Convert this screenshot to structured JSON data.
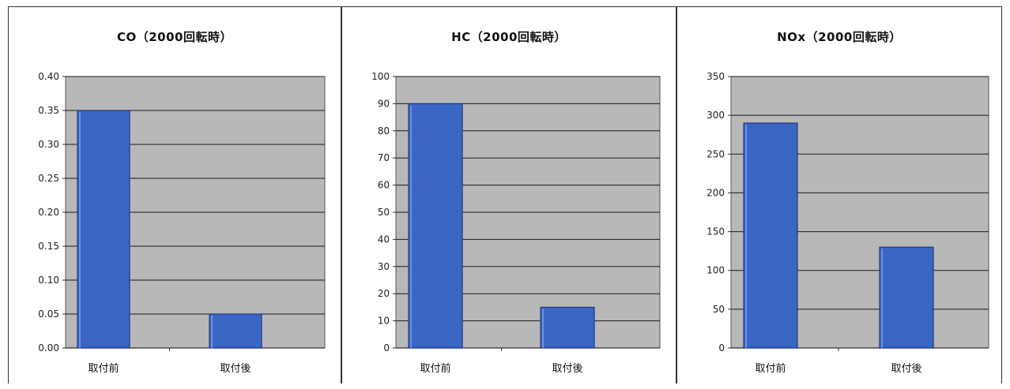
{
  "chart_data": [
    {
      "type": "bar",
      "title": "CO（2000回転時）",
      "categories": [
        "取付前",
        "取付後"
      ],
      "values": [
        0.35,
        0.05
      ],
      "ylim": [
        0,
        0.4
      ],
      "yticks": [
        "0.00",
        "0.05",
        "0.10",
        "0.15",
        "0.20",
        "0.25",
        "0.30",
        "0.35",
        "0.40"
      ],
      "grid": true,
      "bar_color": "#3a66c4",
      "plot_bg": "#b8b8b8"
    },
    {
      "type": "bar",
      "title": "HC（2000回転時）",
      "categories": [
        "取付前",
        "取付後"
      ],
      "values": [
        90,
        15
      ],
      "ylim": [
        0,
        100
      ],
      "yticks": [
        "0",
        "10",
        "20",
        "30",
        "40",
        "50",
        "60",
        "70",
        "80",
        "90",
        "100"
      ],
      "grid": true,
      "bar_color": "#3a66c4",
      "plot_bg": "#b8b8b8"
    },
    {
      "type": "bar",
      "title": "NOx（2000回転時）",
      "categories": [
        "取付前",
        "取付後"
      ],
      "values": [
        290,
        130
      ],
      "ylim": [
        0,
        350
      ],
      "yticks": [
        "0",
        "50",
        "100",
        "150",
        "200",
        "250",
        "300",
        "350"
      ],
      "grid": true,
      "bar_color": "#3a66c4",
      "plot_bg": "#b8b8b8"
    }
  ]
}
